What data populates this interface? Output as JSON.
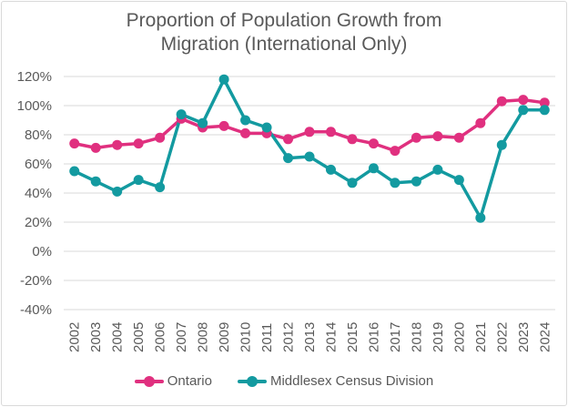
{
  "chart_data": {
    "type": "line",
    "title": "Proportion of Population Growth from Migration (International Only)",
    "title_lines": [
      "Proportion of Population Growth from",
      "Migration (International Only)"
    ],
    "xlabel": "",
    "ylabel": "",
    "categories": [
      "2002",
      "2003",
      "2004",
      "2005",
      "2006",
      "2007",
      "2008",
      "2009",
      "2010",
      "2011",
      "2012",
      "2013",
      "2014",
      "2015",
      "2016",
      "2017",
      "2018",
      "2019",
      "2020",
      "2021",
      "2022",
      "2023",
      "2024"
    ],
    "ylim": [
      -40,
      120
    ],
    "yticks": [
      -40,
      -20,
      0,
      20,
      40,
      60,
      80,
      100,
      120
    ],
    "ytick_labels": [
      "-40%",
      "-20%",
      "0%",
      "20%",
      "40%",
      "60%",
      "80%",
      "100%",
      "120%"
    ],
    "grid": true,
    "legend_position": "bottom",
    "series": [
      {
        "name": "Ontario",
        "color": "#e0307f",
        "values": [
          74,
          71,
          73,
          74,
          78,
          91,
          85,
          86,
          81,
          81,
          77,
          82,
          82,
          77,
          74,
          69,
          78,
          79,
          78,
          88,
          103,
          104,
          102
        ]
      },
      {
        "name": "Middlesex Census Division",
        "color": "#139aa0",
        "values": [
          55,
          48,
          41,
          49,
          44,
          94,
          88,
          118,
          90,
          85,
          64,
          65,
          56,
          47,
          57,
          47,
          48,
          56,
          49,
          23,
          73,
          97,
          97
        ]
      }
    ]
  }
}
